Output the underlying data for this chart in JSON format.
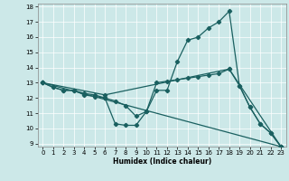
{
  "xlabel": "Humidex (Indice chaleur)",
  "xlim_min": -0.5,
  "xlim_max": 23.5,
  "ylim_min": 8.8,
  "ylim_max": 18.2,
  "yticks": [
    9,
    10,
    11,
    12,
    13,
    14,
    15,
    16,
    17,
    18
  ],
  "xticks": [
    0,
    1,
    2,
    3,
    4,
    5,
    6,
    7,
    8,
    9,
    10,
    11,
    12,
    13,
    14,
    15,
    16,
    17,
    18,
    19,
    20,
    21,
    22,
    23
  ],
  "bg_color": "#cce8e8",
  "line_color": "#1a6060",
  "line1_x": [
    0,
    1,
    2,
    3,
    4,
    5,
    6,
    7,
    8,
    9,
    10,
    11,
    12,
    13,
    14,
    15,
    16,
    17,
    18,
    19,
    20,
    21,
    22,
    23
  ],
  "line1_y": [
    13,
    12.7,
    12.5,
    12.5,
    12.3,
    12.2,
    12.0,
    10.3,
    10.2,
    10.2,
    11.1,
    12.5,
    12.5,
    14.4,
    15.8,
    16.0,
    16.6,
    17.0,
    17.7,
    12.8,
    11.4,
    10.3,
    9.7,
    8.8
  ],
  "line2_x": [
    0,
    1,
    2,
    3,
    4,
    5,
    6,
    7,
    8,
    9,
    10,
    11,
    12,
    13,
    14,
    15,
    16,
    17,
    18,
    19,
    20,
    21,
    22,
    23
  ],
  "line2_y": [
    13,
    12.7,
    12.5,
    12.5,
    12.2,
    12.1,
    12.0,
    11.8,
    11.5,
    10.8,
    11.1,
    13.0,
    13.1,
    13.2,
    13.3,
    13.4,
    13.5,
    13.6,
    13.9,
    12.8,
    11.4,
    10.3,
    9.7,
    8.8
  ],
  "line3_x": [
    0,
    6,
    18,
    23
  ],
  "line3_y": [
    13,
    12.2,
    13.9,
    8.8
  ],
  "line4_x": [
    0,
    23
  ],
  "line4_y": [
    13,
    8.8
  ]
}
